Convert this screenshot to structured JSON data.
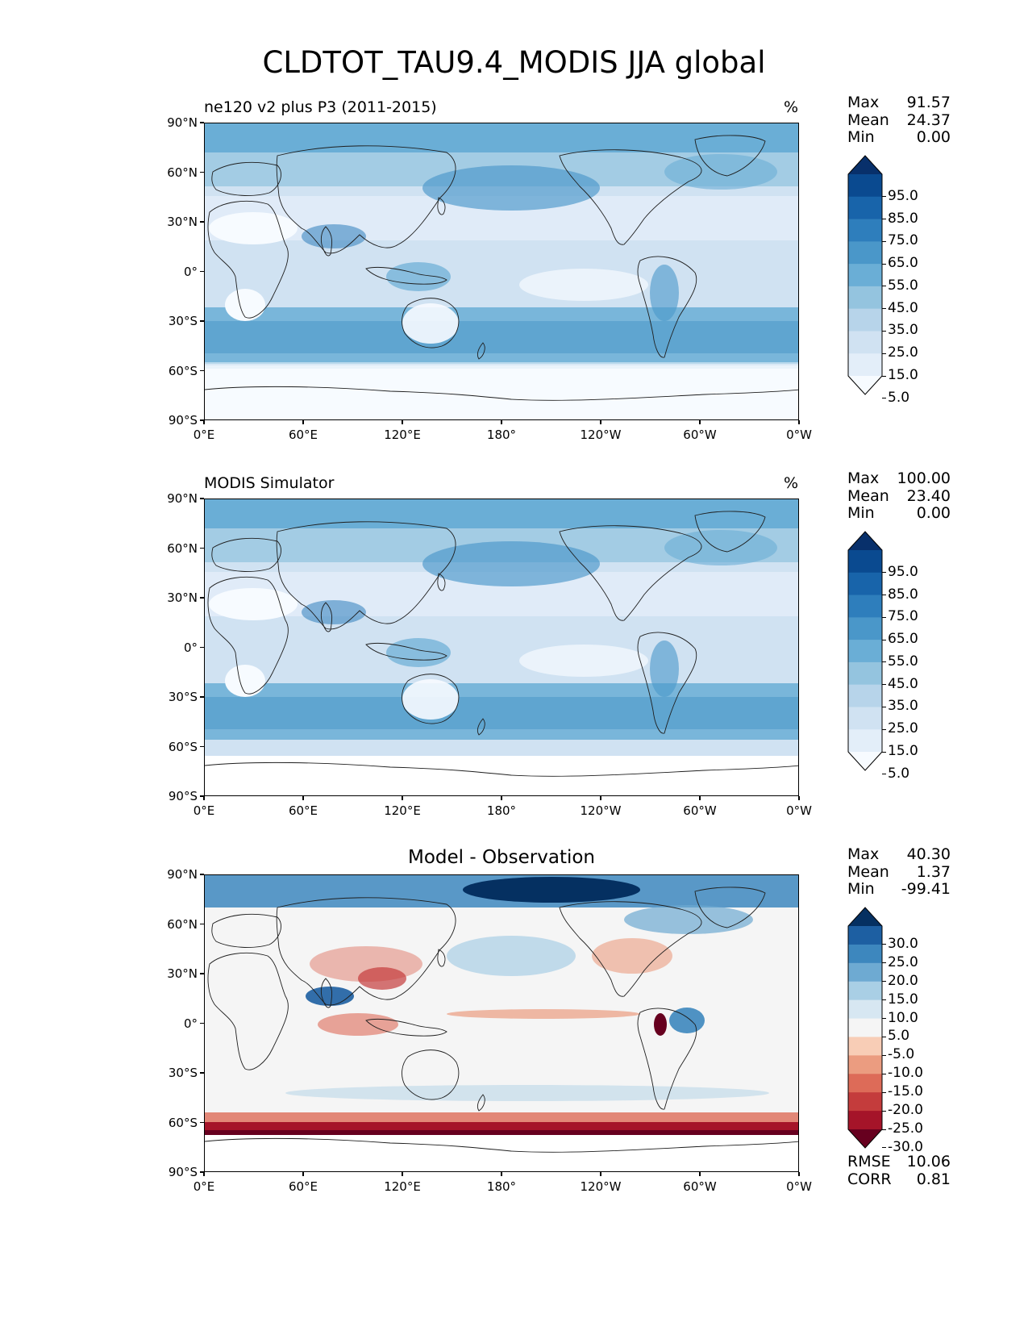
{
  "figure": {
    "title": "CLDTOT_TAU9.4_MODIS JJA global"
  },
  "chart_data": [
    {
      "type": "heatmap",
      "panel": "test",
      "title_left": "ne120 v2 plus P3 (2011-2015)",
      "title_right": "%",
      "x_ticks": [
        "0°E",
        "60°E",
        "120°E",
        "180°",
        "120°W",
        "60°W",
        "0°W"
      ],
      "y_ticks": [
        "90°N",
        "60°N",
        "30°N",
        "0°",
        "30°S",
        "60°S",
        "90°S"
      ],
      "xlim": [
        0,
        360
      ],
      "ylim": [
        -90,
        90
      ],
      "stats": [
        {
          "label": "Max",
          "value": "91.57"
        },
        {
          "label": "Mean",
          "value": "24.37"
        },
        {
          "label": "Min",
          "value": "0.00"
        }
      ],
      "colorbar": {
        "labels": [
          "95.0",
          "85.0",
          "75.0",
          "65.0",
          "55.0",
          "45.0",
          "35.0",
          "25.0",
          "15.0",
          "5.0"
        ],
        "colors": [
          "#f7fbff",
          "#e3eef9",
          "#d0e2f2",
          "#b7d4ea",
          "#94c4df",
          "#6aaed6",
          "#4a97c9",
          "#2e7ebc",
          "#1864aa",
          "#0a4a90",
          "#08306b"
        ]
      }
    },
    {
      "type": "heatmap",
      "panel": "reference",
      "title_left": "MODIS Simulator",
      "title_right": "%",
      "x_ticks": [
        "0°E",
        "60°E",
        "120°E",
        "180°",
        "120°W",
        "60°W",
        "0°W"
      ],
      "y_ticks": [
        "90°N",
        "60°N",
        "30°N",
        "0°",
        "30°S",
        "60°S",
        "90°S"
      ],
      "xlim": [
        0,
        360
      ],
      "ylim": [
        -90,
        90
      ],
      "stats": [
        {
          "label": "Max",
          "value": "100.00"
        },
        {
          "label": "Mean",
          "value": "23.40"
        },
        {
          "label": "Min",
          "value": "0.00"
        }
      ],
      "colorbar": {
        "labels": [
          "95.0",
          "85.0",
          "75.0",
          "65.0",
          "55.0",
          "45.0",
          "35.0",
          "25.0",
          "15.0",
          "5.0"
        ],
        "colors": [
          "#f7fbff",
          "#e3eef9",
          "#d0e2f2",
          "#b7d4ea",
          "#94c4df",
          "#6aaed6",
          "#4a97c9",
          "#2e7ebc",
          "#1864aa",
          "#0a4a90",
          "#08306b"
        ]
      }
    },
    {
      "type": "heatmap",
      "panel": "difference",
      "title_center": "Model - Observation",
      "x_ticks": [
        "0°E",
        "60°E",
        "120°E",
        "180°",
        "120°W",
        "60°W",
        "0°W"
      ],
      "y_ticks": [
        "90°N",
        "60°N",
        "30°N",
        "0°",
        "30°S",
        "60°S",
        "90°S"
      ],
      "xlim": [
        0,
        360
      ],
      "ylim": [
        -90,
        90
      ],
      "stats": [
        {
          "label": "Max",
          "value": "40.30"
        },
        {
          "label": "Mean",
          "value": "1.37"
        },
        {
          "label": "Min",
          "value": "-99.41"
        }
      ],
      "metrics": [
        {
          "label": "RMSE",
          "value": "10.06"
        },
        {
          "label": "CORR",
          "value": "0.81"
        }
      ],
      "colorbar": {
        "labels": [
          "30.0",
          "25.0",
          "20.0",
          "15.0",
          "10.0",
          "5.0",
          "-5.0",
          "-10.0",
          "-15.0",
          "-20.0",
          "-25.0",
          "-30.0"
        ],
        "colors": [
          "#67001f",
          "#a51429",
          "#c43c3c",
          "#dd6b58",
          "#eb9c80",
          "#f8cdb6",
          "#f5f5f5",
          "#d7e7f2",
          "#a9cfe5",
          "#6eaad2",
          "#3d87be",
          "#1d5fa2",
          "#053061"
        ]
      }
    }
  ]
}
